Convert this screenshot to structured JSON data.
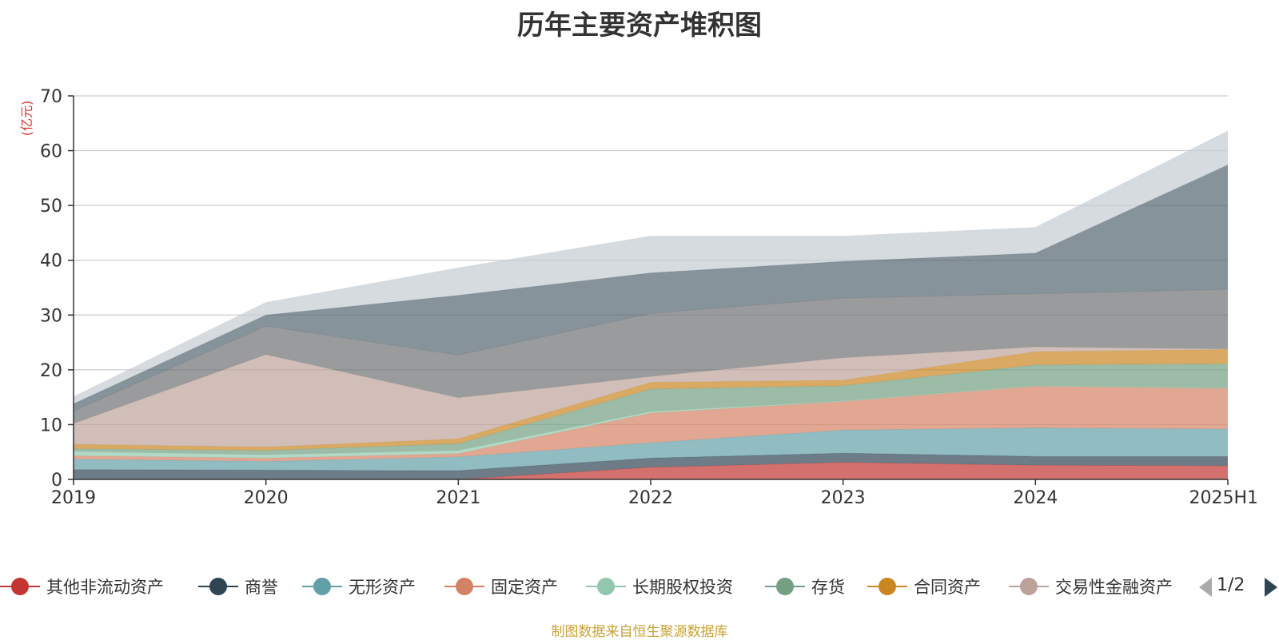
{
  "title": "历年主要资产堆积图",
  "unit_label": "(亿元)",
  "source_note": "制图数据来自恒生聚源数据库",
  "pager": {
    "text": "1/2"
  },
  "legend": [
    {
      "label": "其他非流动资产",
      "color": "#c23531"
    },
    {
      "label": "商誉",
      "color": "#2f4554"
    },
    {
      "label": "无形资产",
      "color": "#61a0a8"
    },
    {
      "label": "固定资产",
      "color": "#d48265"
    },
    {
      "label": "长期股权投资",
      "color": "#91c7ae"
    },
    {
      "label": "存货",
      "color": "#749f83"
    },
    {
      "label": "合同资产",
      "color": "#ca8622"
    },
    {
      "label": "交易性金融资产",
      "color": "#bda29a"
    }
  ],
  "chart_data": {
    "type": "area",
    "stacked": true,
    "title": "历年主要资产堆积图",
    "ylabel": "(亿元)",
    "x": [
      "2019",
      "2020",
      "2021",
      "2022",
      "2023",
      "2024",
      "2025H1"
    ],
    "ylim": [
      0,
      70
    ],
    "yticks": [
      0,
      10,
      20,
      30,
      40,
      50,
      60,
      70
    ],
    "grid": true,
    "legend_position": "bottom",
    "series": [
      {
        "name": "其他非流动资产",
        "color": "#c23531",
        "opacity": 0.7,
        "values": [
          0,
          0,
          0,
          2.2,
          3.1,
          2.6,
          2.5
        ]
      },
      {
        "name": "商誉",
        "color": "#2f4554",
        "opacity": 0.7,
        "values": [
          1.8,
          1.7,
          1.6,
          1.7,
          1.7,
          1.6,
          1.7
        ]
      },
      {
        "name": "无形资产",
        "color": "#61a0a8",
        "opacity": 0.7,
        "values": [
          1.9,
          1.6,
          2.5,
          2.8,
          4.2,
          5.2,
          5.0
        ]
      },
      {
        "name": "固定资产",
        "color": "#d48265",
        "opacity": 0.7,
        "values": [
          0.6,
          0.6,
          0.6,
          5.4,
          5.2,
          7.6,
          7.4
        ]
      },
      {
        "name": "长期股权投资",
        "color": "#91c7ae",
        "opacity": 0.7,
        "values": [
          0.8,
          0.6,
          0.6,
          0.3,
          0.1,
          0.1,
          0.1
        ]
      },
      {
        "name": "存货",
        "color": "#749f83",
        "opacity": 0.7,
        "values": [
          0.5,
          0.8,
          1.2,
          4.1,
          2.8,
          3.8,
          4.4
        ]
      },
      {
        "name": "合同资产",
        "color": "#ca8622",
        "opacity": 0.7,
        "values": [
          0.8,
          0.6,
          0.9,
          1.2,
          1.0,
          2.4,
          2.6
        ]
      },
      {
        "name": "交易性金融资产",
        "color": "#bda29a",
        "opacity": 0.7,
        "values": [
          3.8,
          16.9,
          7.5,
          1.1,
          4.1,
          0.9,
          0.1
        ]
      },
      {
        "name": "",
        "color": "#6e7074",
        "opacity": 0.7,
        "values": [
          2.3,
          5.2,
          7.8,
          11.5,
          10.9,
          9.7,
          10.9
        ]
      },
      {
        "name": "",
        "color": "#546570",
        "opacity": 0.7,
        "values": [
          1.3,
          2.0,
          10.9,
          7.4,
          6.7,
          7.4,
          22.7
        ]
      },
      {
        "name": "",
        "color": "#c4ccd3",
        "opacity": 0.7,
        "values": [
          1.3,
          2.3,
          5.0,
          6.7,
          4.6,
          4.7,
          6.2
        ]
      }
    ]
  }
}
